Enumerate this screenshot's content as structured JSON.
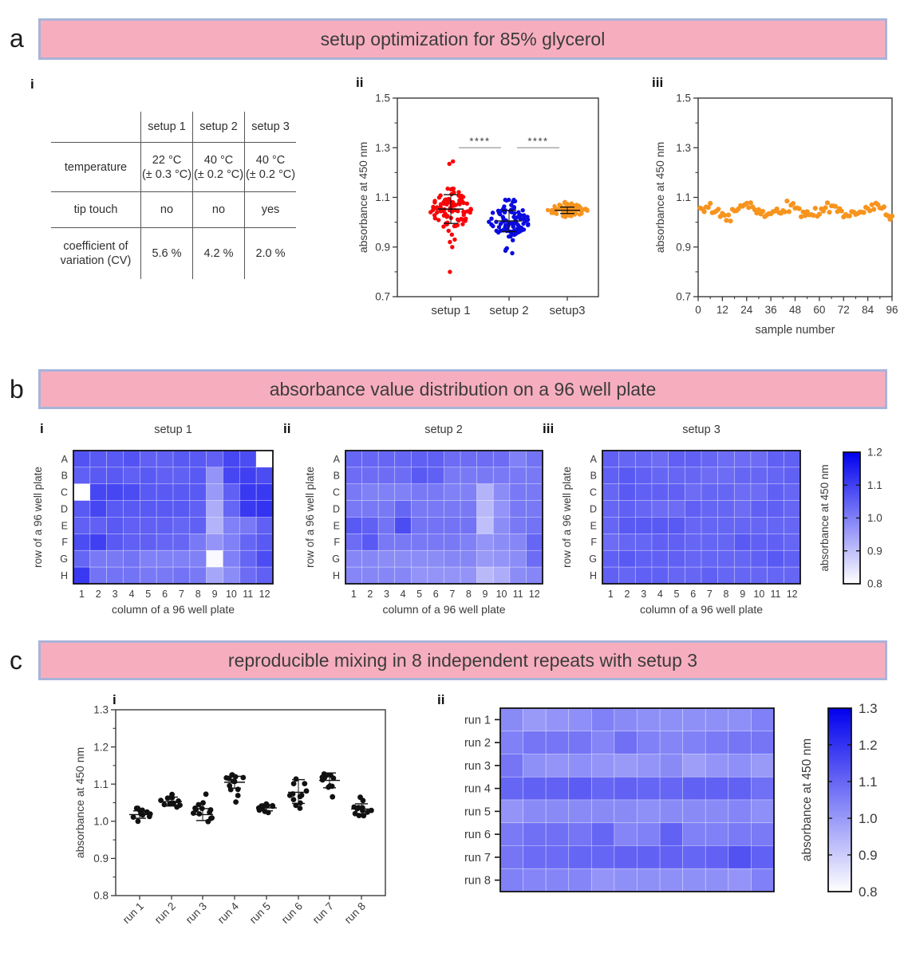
{
  "panels": {
    "a": {
      "label": "a",
      "header": "setup optimization for 85% glycerol",
      "subs": [
        "i",
        "ii",
        "iii"
      ],
      "table": {
        "col_headers": [
          "",
          "setup 1",
          "setup 2",
          "setup 3"
        ],
        "rows": [
          {
            "label": [
              "temperature",
              ""
            ],
            "values": [
              [
                "22 °C",
                "(± 0.3 °C)"
              ],
              [
                "40 °C",
                "(± 0.2 °C)"
              ],
              [
                "40 °C",
                "(± 0.2 °C)"
              ]
            ]
          },
          {
            "label": [
              "tip touch",
              ""
            ],
            "values": [
              [
                "no",
                ""
              ],
              [
                "no",
                ""
              ],
              [
                "yes",
                ""
              ]
            ]
          },
          {
            "label": [
              "coefficient of",
              "variation (CV)"
            ],
            "values": [
              [
                "5.6 %",
                ""
              ],
              [
                "4.2 %",
                ""
              ],
              [
                "2.0 %",
                ""
              ]
            ]
          }
        ]
      }
    },
    "b": {
      "label": "b",
      "header": "absorbance value distribution on a 96 well plate",
      "subs": [
        "i",
        "ii",
        "iii"
      ]
    },
    "c": {
      "label": "c",
      "header": "reproducible mixing in 8 independent repeats with setup 3",
      "subs": [
        "i",
        "ii"
      ]
    }
  },
  "colors": {
    "band_fill": "#f6aebf",
    "band_border": "#a9b3d9",
    "setup1_red": "#fb0207",
    "setup2_blue": "#0a0ae0",
    "setup3_orange": "#f7941e",
    "heat_blue_max": "#0000ee",
    "black_dots": "#111111"
  },
  "chart_data": [
    {
      "id": "a-ii",
      "type": "scatter",
      "variant": "beeswarm",
      "ylabel": "absorbance at 450 nm",
      "ylim": [
        0.7,
        1.5
      ],
      "yticks": [
        0.7,
        0.9,
        1.1,
        1.3,
        1.5
      ],
      "y_minor_step": 0.1,
      "groups": [
        {
          "label": "setup 1",
          "color": "#fb0207",
          "n": 90,
          "mean": 1.05,
          "sd": 0.042,
          "min": 0.93,
          "max": 1.135,
          "extra": [
            1.245,
            1.235,
            0.8,
            0.9,
            0.92,
            0.95
          ],
          "ebar": {
            "mean": 1.053,
            "lo": 0.995,
            "hi": 1.111
          }
        },
        {
          "label": "setup 2",
          "color": "#0a0ae0",
          "n": 92,
          "mean": 1.008,
          "sd": 0.038,
          "min": 0.9,
          "max": 1.09,
          "extra": [
            0.875,
            0.885,
            0.89,
            0.895
          ],
          "ebar": {
            "mean": 1.005,
            "lo": 0.962,
            "hi": 1.048
          }
        },
        {
          "label": "setup3",
          "color": "#f7941e",
          "n": 96,
          "mean": 1.048,
          "sd": 0.013,
          "min": 1.015,
          "max": 1.082,
          "extra": [],
          "ebar": {
            "mean": 1.048,
            "lo": 1.035,
            "hi": 1.061
          }
        }
      ],
      "significance": [
        {
          "between": [
            0,
            1
          ],
          "label": "****",
          "y": 1.3
        },
        {
          "between": [
            1,
            2
          ],
          "label": "****",
          "y": 1.3
        }
      ]
    },
    {
      "id": "a-iii",
      "type": "scatter",
      "variant": "sequence",
      "xlabel": "sample number",
      "ylabel": "absorbance at 450 nm",
      "xlim": [
        0,
        96
      ],
      "xticks": [
        0,
        12,
        24,
        36,
        48,
        60,
        72,
        84,
        96
      ],
      "x_minor_step": 6,
      "ylim": [
        0.7,
        1.5
      ],
      "yticks": [
        0.7,
        0.9,
        1.1,
        1.3,
        1.5
      ],
      "y_minor_step": 0.1,
      "color": "#f7941e",
      "n": 96,
      "mean": 1.047,
      "wave_amp": 0.016,
      "wave_period": 21,
      "noise_sd": 0.011,
      "range": [
        1.005,
        1.09
      ]
    },
    {
      "id": "b-i",
      "type": "heatmap",
      "title": "setup 1",
      "xlabel": "column of a 96 well plate",
      "ylabel": "row of a 96 well plate",
      "rows": [
        "A",
        "B",
        "C",
        "D",
        "E",
        "F",
        "G",
        "H"
      ],
      "cols": [
        "1",
        "2",
        "3",
        "4",
        "5",
        "6",
        "7",
        "8",
        "9",
        "10",
        "11",
        "12"
      ],
      "vmin": 0.8,
      "vmax": 1.2,
      "values": [
        [
          1.07,
          1.06,
          1.06,
          1.07,
          1.05,
          1.05,
          1.06,
          1.06,
          1.05,
          1.09,
          1.08,
          0.8
        ],
        [
          1.05,
          1.06,
          1.06,
          1.05,
          1.06,
          1.05,
          1.05,
          1.06,
          0.97,
          1.09,
          1.1,
          1.08
        ],
        [
          0.8,
          1.09,
          1.09,
          1.08,
          1.06,
          1.06,
          1.06,
          1.06,
          0.96,
          1.05,
          1.11,
          1.11
        ],
        [
          1.06,
          1.09,
          1.06,
          1.06,
          1.06,
          1.06,
          1.06,
          1.05,
          0.93,
          1.04,
          1.11,
          1.12
        ],
        [
          1.05,
          1.05,
          1.06,
          1.05,
          1.05,
          1.05,
          1.04,
          1.05,
          0.92,
          1.0,
          1.01,
          1.05
        ],
        [
          1.08,
          1.1,
          1.06,
          1.05,
          1.05,
          1.04,
          1.04,
          1.01,
          0.97,
          1.0,
          1.04,
          1.06
        ],
        [
          1.04,
          1.01,
          1.01,
          1.02,
          1.0,
          1.0,
          1.0,
          1.0,
          0.81,
          1.0,
          1.04,
          1.08
        ],
        [
          1.11,
          1.02,
          1.02,
          1.02,
          1.01,
          1.01,
          1.02,
          1.01,
          0.94,
          0.98,
          1.03,
          1.05
        ]
      ]
    },
    {
      "id": "b-ii",
      "type": "heatmap",
      "title": "setup 2",
      "xlabel": "column of a 96 well plate",
      "ylabel": "row of a 96 well plate",
      "rows": [
        "A",
        "B",
        "C",
        "D",
        "E",
        "F",
        "G",
        "H"
      ],
      "cols": [
        "1",
        "2",
        "3",
        "4",
        "5",
        "6",
        "7",
        "8",
        "9",
        "10",
        "11",
        "12"
      ],
      "vmin": 0.8,
      "vmax": 1.2,
      "values": [
        [
          1.04,
          1.04,
          1.04,
          1.04,
          1.05,
          1.05,
          1.03,
          1.03,
          1.03,
          1.03,
          1.0,
          1.02
        ],
        [
          1.03,
          1.03,
          1.03,
          1.03,
          1.06,
          1.05,
          1.01,
          1.01,
          1.01,
          1.01,
          1.01,
          1.01
        ],
        [
          1.01,
          1.0,
          1.0,
          1.0,
          1.01,
          1.01,
          1.0,
          1.0,
          0.92,
          0.98,
          1.01,
          1.01
        ],
        [
          1.01,
          1.01,
          1.01,
          1.04,
          1.01,
          1.01,
          1.01,
          1.01,
          0.91,
          0.97,
          1.01,
          1.01
        ],
        [
          1.06,
          1.05,
          1.02,
          1.08,
          1.02,
          1.02,
          1.02,
          1.02,
          0.9,
          0.98,
          1.01,
          1.02
        ],
        [
          1.03,
          1.06,
          1.01,
          1.01,
          1.01,
          1.01,
          1.01,
          1.0,
          0.97,
          0.98,
          0.99,
          1.04
        ],
        [
          0.99,
          0.99,
          0.98,
          0.98,
          0.98,
          0.98,
          0.99,
          0.99,
          0.96,
          0.97,
          0.98,
          1.03
        ],
        [
          0.99,
          0.99,
          0.99,
          0.99,
          0.97,
          0.97,
          0.97,
          0.97,
          0.91,
          0.93,
          0.98,
          0.99
        ]
      ]
    },
    {
      "id": "b-iii",
      "type": "heatmap",
      "title": "setup 3",
      "xlabel": "column of a 96 well plate",
      "ylabel": "row of a 96 well plate",
      "rows": [
        "A",
        "B",
        "C",
        "D",
        "E",
        "F",
        "G",
        "H"
      ],
      "cols": [
        "1",
        "2",
        "3",
        "4",
        "5",
        "6",
        "7",
        "8",
        "9",
        "10",
        "11",
        "12"
      ],
      "vmin": 0.8,
      "vmax": 1.2,
      "values": [
        [
          1.05,
          1.04,
          1.04,
          1.03,
          1.05,
          1.05,
          1.04,
          1.03,
          1.03,
          1.03,
          1.05,
          1.05
        ],
        [
          1.05,
          1.06,
          1.05,
          1.04,
          1.04,
          1.04,
          1.03,
          1.03,
          1.04,
          1.04,
          1.04,
          1.05
        ],
        [
          1.04,
          1.06,
          1.05,
          1.05,
          1.05,
          1.03,
          1.04,
          1.04,
          1.03,
          1.03,
          1.05,
          1.04
        ],
        [
          1.04,
          1.05,
          1.04,
          1.03,
          1.03,
          1.05,
          1.04,
          1.04,
          1.03,
          1.05,
          1.05,
          1.04
        ],
        [
          1.04,
          1.06,
          1.06,
          1.06,
          1.06,
          1.04,
          1.04,
          1.04,
          1.04,
          1.04,
          1.04,
          1.04
        ],
        [
          1.03,
          1.04,
          1.04,
          1.05,
          1.05,
          1.04,
          1.04,
          1.04,
          1.06,
          1.05,
          1.05,
          1.04
        ],
        [
          1.05,
          1.06,
          1.05,
          1.05,
          1.05,
          1.04,
          1.04,
          1.04,
          1.04,
          1.05,
          1.06,
          1.05
        ],
        [
          1.05,
          1.04,
          1.05,
          1.05,
          1.04,
          1.04,
          1.05,
          1.04,
          1.04,
          1.04,
          1.04,
          1.04
        ]
      ]
    },
    {
      "id": "cbar-b",
      "type": "colorbar",
      "label": "absorbance at 450 nm",
      "vmin": 0.8,
      "vmax": 1.2,
      "ticks": [
        0.8,
        0.9,
        1.0,
        1.1,
        1.2
      ]
    },
    {
      "id": "c-i",
      "type": "scatter",
      "variant": "beeswarm",
      "ylabel": "absorbance at 450 nm",
      "ylim": [
        0.8,
        1.3
      ],
      "yticks": [
        0.8,
        0.9,
        1.0,
        1.1,
        1.2,
        1.3
      ],
      "y_minor_step": 0.05,
      "rotate_xlabels": true,
      "groups": [
        {
          "label": "run 1",
          "color": "#111111",
          "n": 12,
          "mean": 1.018,
          "sd": 0.01,
          "min": 1.0,
          "max": 1.035,
          "extra": [],
          "ebar": {
            "mean": 1.018,
            "lo": 1.008,
            "hi": 1.028
          }
        },
        {
          "label": "run 2",
          "color": "#111111",
          "n": 12,
          "mean": 1.053,
          "sd": 0.012,
          "min": 1.03,
          "max": 1.072,
          "extra": [],
          "ebar": {
            "mean": 1.053,
            "lo": 1.041,
            "hi": 1.065
          }
        },
        {
          "label": "run 3",
          "color": "#111111",
          "n": 12,
          "mean": 1.018,
          "sd": 0.016,
          "min": 0.998,
          "max": 1.073,
          "extra": [
            1.073
          ],
          "ebar": {
            "mean": 1.018,
            "lo": 1.002,
            "hi": 1.034
          }
        },
        {
          "label": "run 4",
          "color": "#111111",
          "n": 12,
          "mean": 1.105,
          "sd": 0.016,
          "min": 1.052,
          "max": 1.125,
          "extra": [
            1.052
          ],
          "ebar": {
            "mean": 1.105,
            "lo": 1.089,
            "hi": 1.121
          }
        },
        {
          "label": "run 5",
          "color": "#111111",
          "n": 12,
          "mean": 1.036,
          "sd": 0.008,
          "min": 1.018,
          "max": 1.052,
          "extra": [],
          "ebar": {
            "mean": 1.036,
            "lo": 1.028,
            "hi": 1.044
          }
        },
        {
          "label": "run 6",
          "color": "#111111",
          "n": 12,
          "mean": 1.078,
          "sd": 0.028,
          "min": 1.035,
          "max": 1.132,
          "extra": [],
          "ebar": {
            "mean": 1.078,
            "lo": 1.048,
            "hi": 1.112
          }
        },
        {
          "label": "run 7",
          "color": "#111111",
          "n": 12,
          "mean": 1.11,
          "sd": 0.018,
          "min": 1.065,
          "max": 1.148,
          "extra": [],
          "ebar": {
            "mean": 1.11,
            "lo": 1.09,
            "hi": 1.13
          }
        },
        {
          "label": "run 8",
          "color": "#111111",
          "n": 12,
          "mean": 1.033,
          "sd": 0.014,
          "min": 1.015,
          "max": 1.065,
          "extra": [],
          "ebar": {
            "mean": 1.033,
            "lo": 1.019,
            "hi": 1.047
          }
        }
      ]
    },
    {
      "id": "c-ii",
      "type": "heatmap",
      "title": "",
      "rows": [
        "run 1",
        "run 2",
        "run 3",
        "run 4",
        "run 5",
        "run 6",
        "run 7",
        "run 8"
      ],
      "cols": [],
      "row_ticks": true,
      "vmin": 0.8,
      "vmax": 1.3,
      "values": [
        [
          1.03,
          1.0,
          1.01,
          1.02,
          1.05,
          1.03,
          1.02,
          1.02,
          1.02,
          1.02,
          1.02,
          1.05
        ],
        [
          1.05,
          1.07,
          1.07,
          1.07,
          1.04,
          1.08,
          1.05,
          1.04,
          1.05,
          1.06,
          1.07,
          1.07
        ],
        [
          1.07,
          1.02,
          1.01,
          1.02,
          1.01,
          1.0,
          1.01,
          1.03,
          0.99,
          1.01,
          1.02,
          1.0
        ],
        [
          1.1,
          1.11,
          1.11,
          1.12,
          1.1,
          1.11,
          1.1,
          1.1,
          1.11,
          1.11,
          1.11,
          1.08
        ],
        [
          1.01,
          1.03,
          1.03,
          1.03,
          1.03,
          1.03,
          1.02,
          1.03,
          1.03,
          1.03,
          1.04,
          1.02
        ],
        [
          1.06,
          1.08,
          1.08,
          1.07,
          1.1,
          1.04,
          1.05,
          1.11,
          1.05,
          1.05,
          1.06,
          1.06
        ],
        [
          1.07,
          1.09,
          1.09,
          1.1,
          1.1,
          1.11,
          1.11,
          1.11,
          1.1,
          1.11,
          1.14,
          1.11
        ],
        [
          1.05,
          1.04,
          1.04,
          1.04,
          1.01,
          1.02,
          1.02,
          1.02,
          1.02,
          1.02,
          1.01,
          1.05
        ]
      ]
    },
    {
      "id": "cbar-c",
      "type": "colorbar",
      "label": "absorbance at 450 nm",
      "vmin": 0.8,
      "vmax": 1.3,
      "ticks": [
        0.8,
        0.9,
        1.0,
        1.1,
        1.2,
        1.3
      ]
    }
  ]
}
